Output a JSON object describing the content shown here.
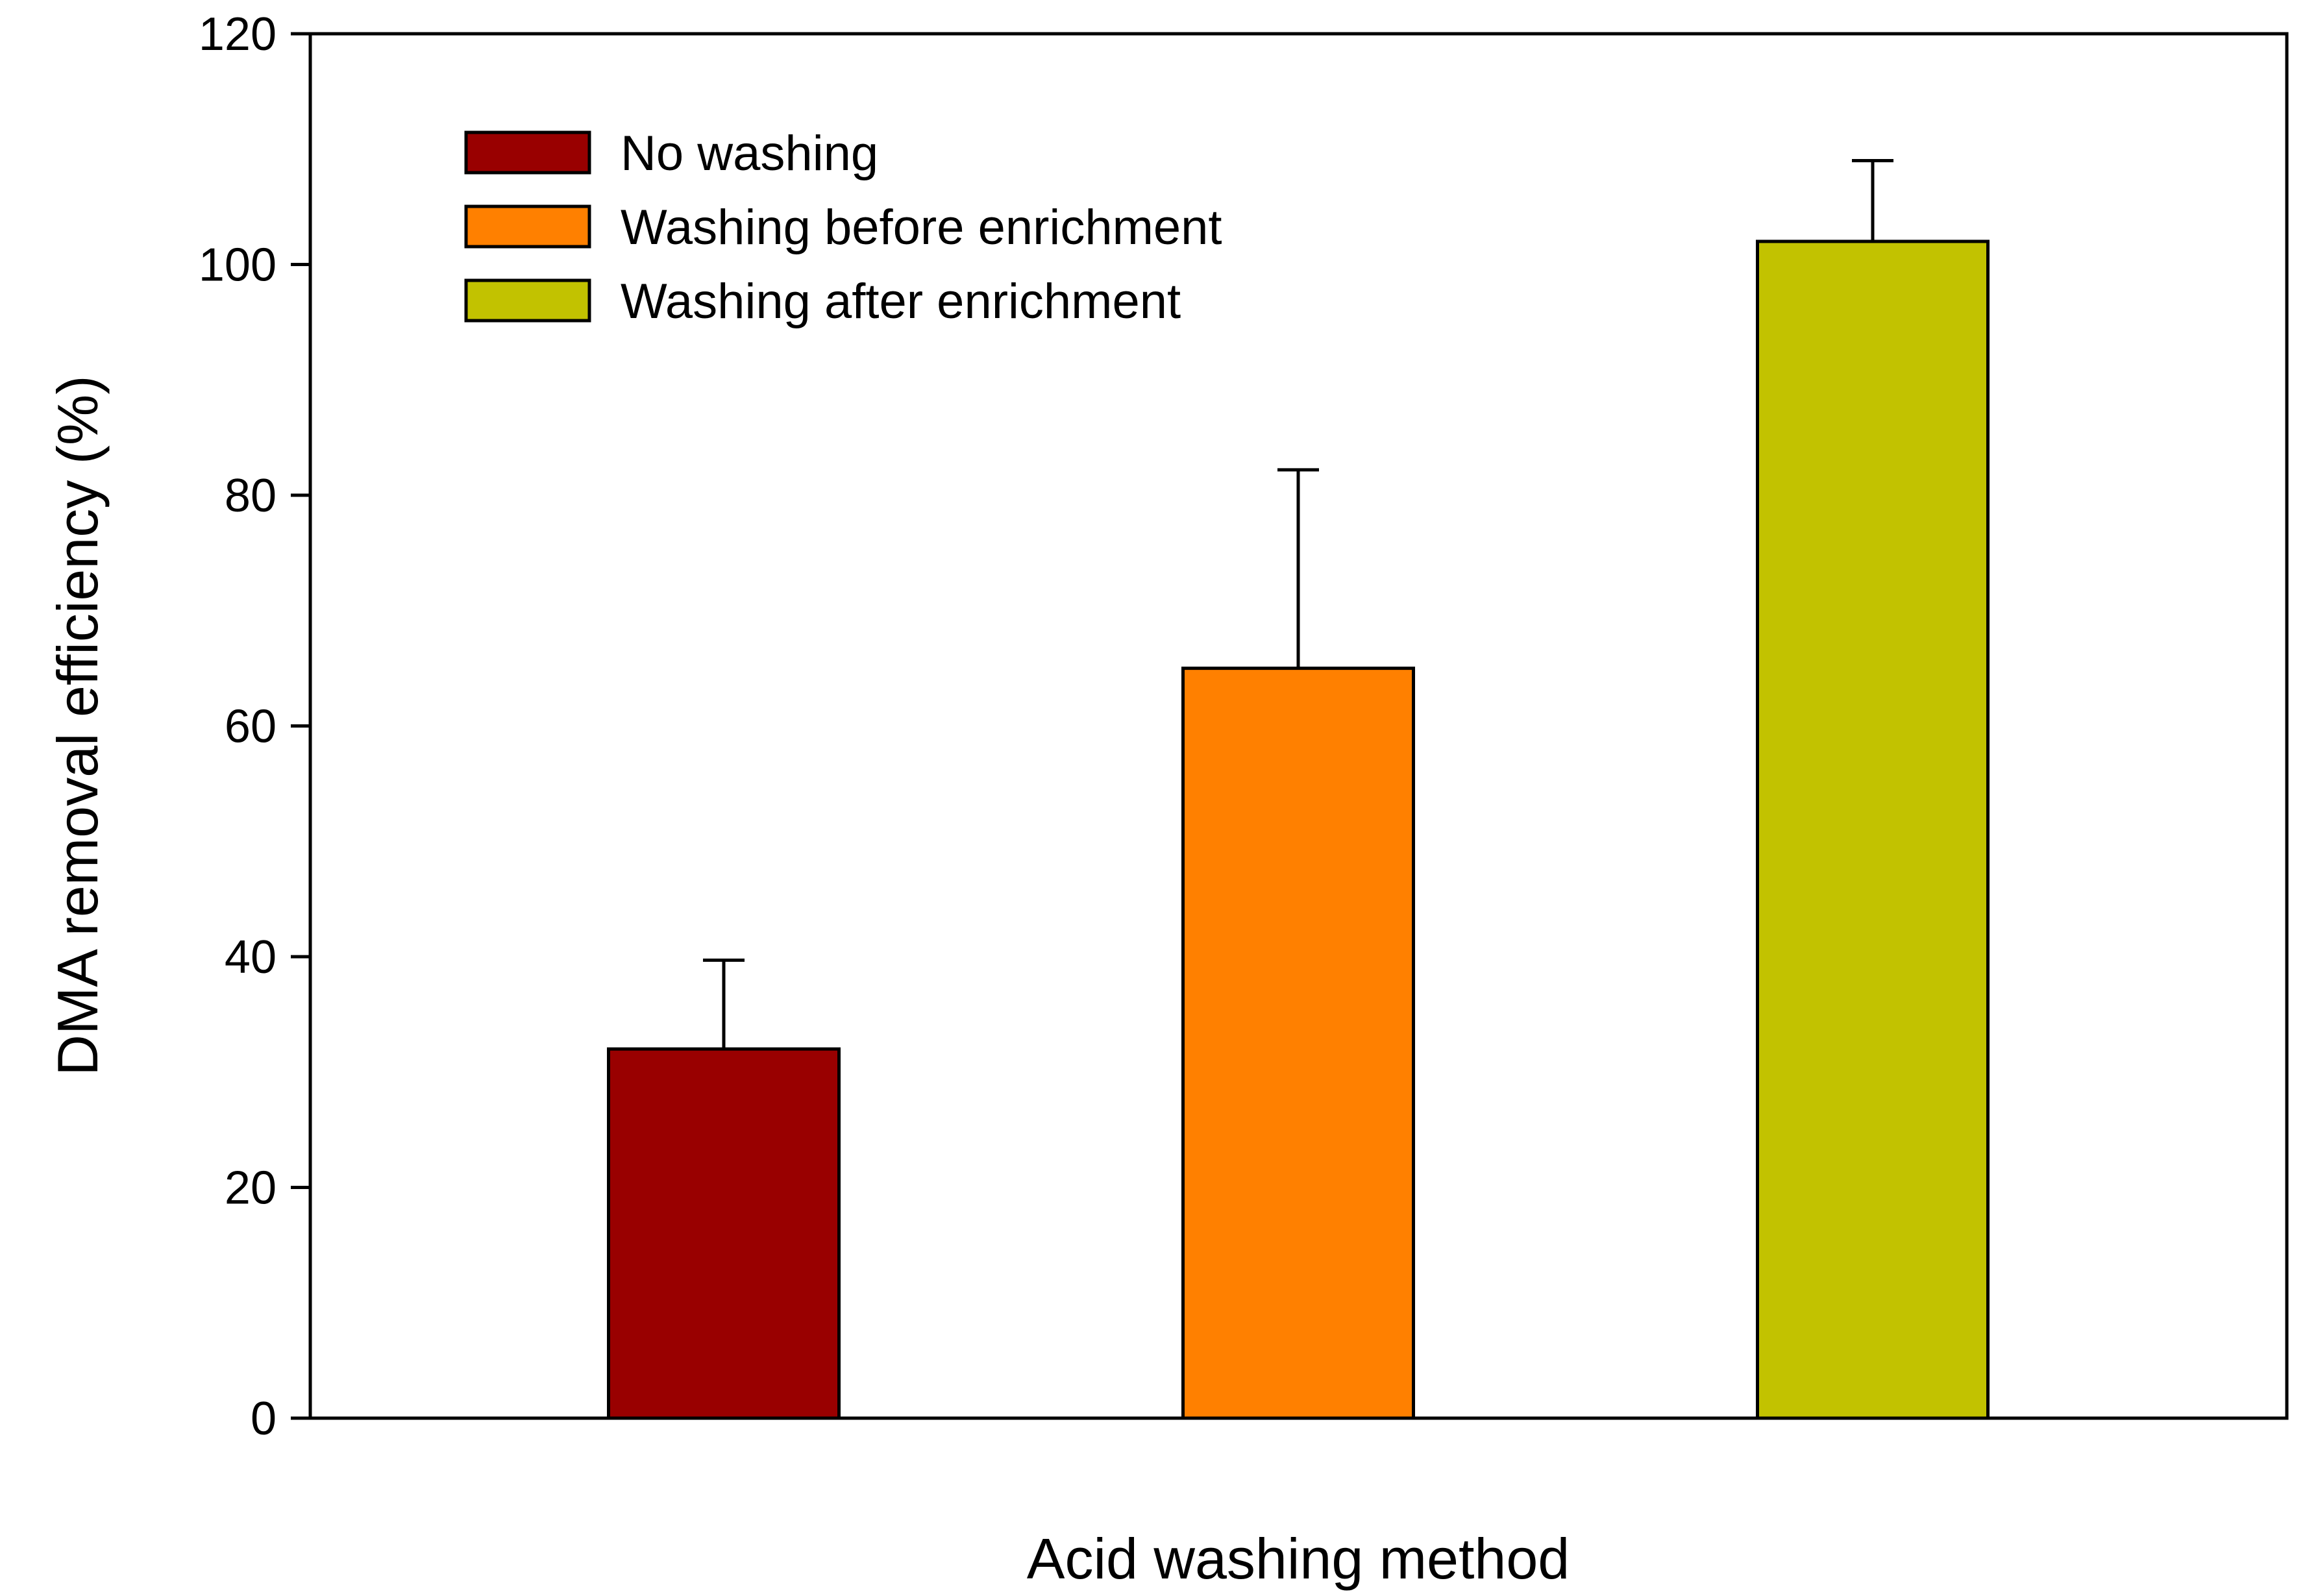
{
  "chart_data": {
    "type": "bar",
    "title": "",
    "xlabel": "Acid washing method",
    "ylabel": "DMA removal efficiency (%)",
    "ylim": [
      0,
      120
    ],
    "yticks": [
      "0",
      "20",
      "40",
      "60",
      "80",
      "100",
      "120"
    ],
    "grid": false,
    "legend_position": "top-left",
    "categories": [
      "No washing",
      "Washing before enrichment",
      "Washing after enrichment"
    ],
    "values": [
      32,
      65,
      102
    ],
    "error_upper": [
      7.7,
      17.2,
      7
    ],
    "colors": [
      "#990000",
      "#FF8000",
      "#C2C200"
    ]
  }
}
